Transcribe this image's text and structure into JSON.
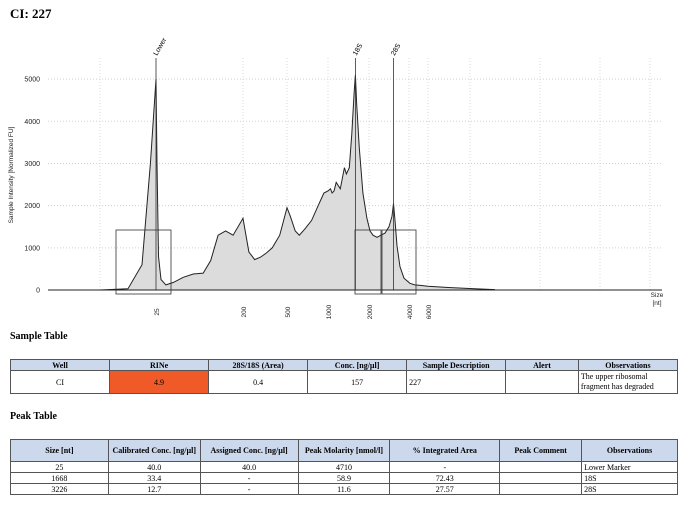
{
  "page_title": "CI: 227",
  "chart_data": {
    "type": "line",
    "ylabel": "Sample Intensity [Normalized FU]",
    "xlabel": "Size [nt]",
    "xlabel_lines": [
      "Size",
      "[nt]"
    ],
    "ylim": [
      0,
      5500
    ],
    "yticks": [
      0,
      1000,
      2000,
      3000,
      4000,
      5000
    ],
    "xticks": [
      25,
      200,
      500,
      1000,
      2000,
      4000,
      6000
    ],
    "grid": true,
    "fill_color": "#dcdcdc",
    "peak_labels": [
      {
        "label": "Lower",
        "x": 25
      },
      {
        "label": "18S",
        "x": 1668
      },
      {
        "label": "28S",
        "x": 3226
      }
    ],
    "series": [
      {
        "values": [
          [
            5,
            0
          ],
          [
            15,
            30
          ],
          [
            20,
            600
          ],
          [
            23,
            3000
          ],
          [
            25,
            5000
          ],
          [
            27,
            3000
          ],
          [
            30,
            800
          ],
          [
            35,
            250
          ],
          [
            45,
            120
          ],
          [
            60,
            180
          ],
          [
            80,
            300
          ],
          [
            100,
            380
          ],
          [
            120,
            400
          ],
          [
            135,
            700
          ],
          [
            150,
            1300
          ],
          [
            165,
            1400
          ],
          [
            180,
            1300
          ],
          [
            200,
            1700
          ],
          [
            215,
            1400
          ],
          [
            240,
            900
          ],
          [
            280,
            720
          ],
          [
            320,
            780
          ],
          [
            360,
            880
          ],
          [
            400,
            1000
          ],
          [
            450,
            1300
          ],
          [
            500,
            1950
          ],
          [
            540,
            1750
          ],
          [
            600,
            1400
          ],
          [
            650,
            1300
          ],
          [
            720,
            1450
          ],
          [
            800,
            1650
          ],
          [
            880,
            2000
          ],
          [
            950,
            2300
          ],
          [
            1000,
            2350
          ],
          [
            1060,
            2400
          ],
          [
            1100,
            2300
          ],
          [
            1150,
            2350
          ],
          [
            1200,
            2550
          ],
          [
            1300,
            2400
          ],
          [
            1400,
            2900
          ],
          [
            1450,
            2750
          ],
          [
            1520,
            2900
          ],
          [
            1580,
            3700
          ],
          [
            1640,
            4700
          ],
          [
            1668,
            5100
          ],
          [
            1700,
            4400
          ],
          [
            1760,
            3400
          ],
          [
            1850,
            2300
          ],
          [
            1950,
            1700
          ],
          [
            2050,
            1400
          ],
          [
            2200,
            1300
          ],
          [
            2400,
            1250
          ],
          [
            2600,
            1300
          ],
          [
            2800,
            1350
          ],
          [
            3000,
            1500
          ],
          [
            3150,
            1750
          ],
          [
            3226,
            2050
          ],
          [
            3300,
            1650
          ],
          [
            3400,
            1050
          ],
          [
            3550,
            550
          ],
          [
            3750,
            280
          ],
          [
            4100,
            160
          ],
          [
            4600,
            120
          ],
          [
            5200,
            110
          ],
          [
            6000,
            90
          ],
          [
            7500,
            60
          ],
          [
            9500,
            30
          ],
          [
            11000,
            10
          ]
        ]
      }
    ]
  },
  "sample_table": {
    "heading": "Sample Table",
    "headers": [
      "Well",
      "RINe",
      "28S/18S (Area)",
      "Conc. [ng/µl]",
      "Sample Description",
      "Alert",
      "Observations"
    ],
    "row": {
      "well": "CI",
      "rine": "4.9",
      "ratio": "0.4",
      "conc": "157",
      "description": "227",
      "alert": "",
      "observations": "The upper ribosomal fragment has degraded"
    },
    "rine_color": "#f05a28"
  },
  "peak_table": {
    "heading": "Peak Table",
    "headers": [
      "Size [nt]",
      "Calibrated Conc. [ng/µl]",
      "Assigned Conc. [ng/µl]",
      "Peak Molarity [nmol/l]",
      "% Integrated Area",
      "Peak Comment",
      "Observations"
    ],
    "rows": [
      [
        "25",
        "40.0",
        "40.0",
        "4710",
        "-",
        "",
        "Lower Marker"
      ],
      [
        "1668",
        "33.4",
        "-",
        "58.9",
        "72.43",
        "",
        "18S"
      ],
      [
        "3226",
        "12.7",
        "-",
        "11.6",
        "27.57",
        "",
        "28S"
      ]
    ]
  }
}
